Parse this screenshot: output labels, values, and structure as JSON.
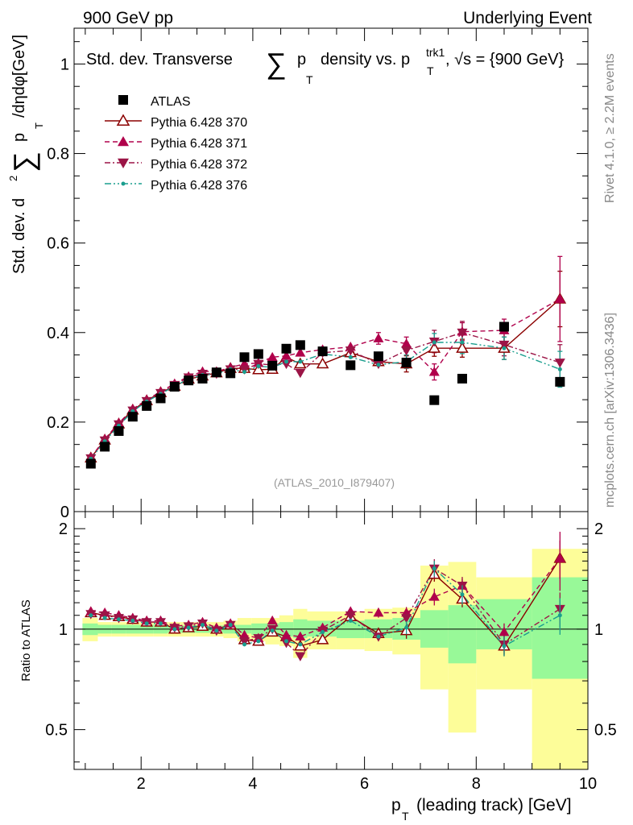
{
  "header": {
    "left": "900 GeV pp",
    "right": "Underlying Event",
    "side_top": "Rivet 4.1.0, ≥ 2.2M events",
    "side_bottom": "mcplots.cern.ch [arXiv:1306.3436]"
  },
  "colors": {
    "atlas": "#000000",
    "p370": "#8b0000",
    "p371": "#b0004b",
    "p372": "#9b1446",
    "p376": "#1a9e8e",
    "band_stat": "#98f998",
    "band_total": "#fdfd99"
  },
  "chart_data": [
    {
      "type": "scatter",
      "title": "Std. dev. Transverse ∑ p_T density vs. p_T^trk1, √s = {900 GeV}",
      "title_parts": {
        "a": "Std. dev. Transverse",
        "sum": "∑",
        "p": "p",
        "sub": "T",
        "b": "density vs. p",
        "sup": "trk1",
        "c": ", √s = {900 GeV}"
      },
      "ylabel": "Std. dev. d²∑ p_T /dηdφ [GeV]",
      "ylabel_parts": {
        "a": "Std. dev. d",
        "exp": "2",
        "sum": "∑",
        "p": "p",
        "sub": "T",
        "b": "/dηdφ[GeV]"
      },
      "xlim": [
        0.8,
        10
      ],
      "ylim": [
        0,
        1.08
      ],
      "yticks": [
        "0",
        "0.2",
        "0.4",
        "0.6",
        "0.8",
        "1"
      ],
      "yticks_values": [
        0,
        0.2,
        0.4,
        0.6,
        0.8,
        1.0
      ],
      "watermark": "(ATLAS_2010_I879407)",
      "x": [
        1.1,
        1.35,
        1.6,
        1.85,
        2.1,
        2.35,
        2.6,
        2.85,
        3.1,
        3.35,
        3.6,
        3.85,
        4.1,
        4.35,
        4.6,
        4.85,
        5.25,
        5.75,
        6.25,
        6.75,
        7.25,
        7.75,
        8.5,
        9.5
      ],
      "series": [
        {
          "name": "ATLAS",
          "key": "atlas",
          "marker": "square",
          "values": [
            0.107,
            0.145,
            0.18,
            0.212,
            0.236,
            0.253,
            0.279,
            0.293,
            0.297,
            0.311,
            0.309,
            0.345,
            0.352,
            0.326,
            0.364,
            0.372,
            0.358,
            0.327,
            0.347,
            0.333,
            0.249,
            0.297,
            0.413,
            0.29
          ]
        },
        {
          "name": "Pythia 6.428 370",
          "key": "p370",
          "marker": "triangle-up-open",
          "line": "solid",
          "values": [
            0.12,
            0.16,
            0.196,
            0.227,
            0.248,
            0.266,
            0.28,
            0.296,
            0.303,
            0.31,
            0.32,
            0.32,
            0.317,
            0.318,
            0.345,
            0.33,
            0.33,
            0.355,
            0.335,
            0.33,
            0.365,
            0.365,
            0.365,
            0.475
          ],
          "err": [
            0,
            0,
            0,
            0,
            0,
            0,
            0,
            0,
            0,
            0,
            0,
            0,
            0,
            0,
            0,
            0,
            0,
            0,
            0,
            0.018,
            0.018,
            0.02,
            0.025,
            0.062
          ]
        },
        {
          "name": "Pythia 6.428 371",
          "key": "p371",
          "marker": "triangle-up",
          "line": "dashed",
          "values": [
            0.121,
            0.162,
            0.198,
            0.229,
            0.25,
            0.268,
            0.286,
            0.302,
            0.313,
            0.313,
            0.322,
            0.33,
            0.332,
            0.345,
            0.348,
            0.355,
            0.362,
            0.368,
            0.387,
            0.375,
            0.312,
            0.402,
            0.405,
            0.475
          ],
          "err": [
            0,
            0,
            0,
            0,
            0,
            0,
            0,
            0,
            0,
            0,
            0,
            0,
            0,
            0,
            0,
            0,
            0,
            0,
            0.013,
            0.015,
            0.018,
            0.02,
            0.025,
            0.095
          ]
        },
        {
          "name": "Pythia 6.428 372",
          "key": "p372",
          "marker": "triangle-down",
          "line": "dashdot",
          "values": [
            0.119,
            0.159,
            0.195,
            0.226,
            0.247,
            0.265,
            0.283,
            0.3,
            0.308,
            0.308,
            0.318,
            0.318,
            0.33,
            0.328,
            0.33,
            0.31,
            0.355,
            0.36,
            0.33,
            0.36,
            0.38,
            0.4,
            0.373,
            0.333
          ],
          "err": [
            0,
            0,
            0,
            0,
            0,
            0,
            0,
            0,
            0,
            0,
            0,
            0,
            0,
            0,
            0,
            0,
            0,
            0,
            0,
            0.018,
            0.025,
            0.025,
            0.025,
            0.04
          ]
        },
        {
          "name": "Pythia 6.428 376",
          "key": "p376",
          "marker": "dot",
          "line": "dashdotdot",
          "values": [
            0.118,
            0.157,
            0.192,
            0.224,
            0.246,
            0.263,
            0.28,
            0.296,
            0.305,
            0.308,
            0.318,
            0.312,
            0.325,
            0.322,
            0.335,
            0.335,
            0.352,
            0.345,
            0.328,
            0.335,
            0.378,
            0.378,
            0.365,
            0.318
          ],
          "err": [
            0,
            0,
            0,
            0,
            0,
            0,
            0,
            0,
            0,
            0,
            0,
            0,
            0,
            0,
            0,
            0,
            0,
            0,
            0,
            0.015,
            0.02,
            0.025,
            0.025,
            0.04
          ]
        }
      ]
    },
    {
      "type": "scatter",
      "title": "",
      "ylabel": "Ratio to ATLAS",
      "xlabel": "p_T (leading track) [GeV]",
      "xlabel_parts": {
        "p": "p",
        "sub": "T",
        "rest": "(leading track) [GeV]"
      },
      "xlim": [
        0.8,
        10
      ],
      "ylim": [
        0.38,
        2.25
      ],
      "xticks": [
        "2",
        "4",
        "6",
        "8",
        "10"
      ],
      "xticks_values": [
        2,
        4,
        6,
        8,
        10
      ],
      "yticks": [
        "0.5",
        "1",
        "2"
      ],
      "yticks_values": [
        0.5,
        1,
        2
      ],
      "bins": [
        {
          "lo": 0.95,
          "hi": 1.225,
          "stat": [
            0.96,
            1.04
          ],
          "total": [
            0.92,
            1.08
          ]
        },
        {
          "lo": 1.225,
          "hi": 1.475,
          "stat": [
            0.97,
            1.03
          ],
          "total": [
            0.95,
            1.05
          ]
        },
        {
          "lo": 1.475,
          "hi": 1.725,
          "stat": [
            0.97,
            1.03
          ],
          "total": [
            0.95,
            1.05
          ]
        },
        {
          "lo": 1.725,
          "hi": 1.975,
          "stat": [
            0.97,
            1.03
          ],
          "total": [
            0.95,
            1.05
          ]
        },
        {
          "lo": 1.975,
          "hi": 2.225,
          "stat": [
            0.97,
            1.03
          ],
          "total": [
            0.95,
            1.05
          ]
        },
        {
          "lo": 2.225,
          "hi": 2.475,
          "stat": [
            0.97,
            1.03
          ],
          "total": [
            0.95,
            1.05
          ]
        },
        {
          "lo": 2.475,
          "hi": 2.725,
          "stat": [
            0.975,
            1.025
          ],
          "total": [
            0.95,
            1.05
          ]
        },
        {
          "lo": 2.725,
          "hi": 2.975,
          "stat": [
            0.975,
            1.025
          ],
          "total": [
            0.95,
            1.05
          ]
        },
        {
          "lo": 2.975,
          "hi": 3.225,
          "stat": [
            0.975,
            1.025
          ],
          "total": [
            0.95,
            1.05
          ]
        },
        {
          "lo": 3.225,
          "hi": 3.475,
          "stat": [
            0.975,
            1.025
          ],
          "total": [
            0.95,
            1.05
          ]
        },
        {
          "lo": 3.475,
          "hi": 3.725,
          "stat": [
            0.97,
            1.03
          ],
          "total": [
            0.94,
            1.06
          ]
        },
        {
          "lo": 3.725,
          "hi": 3.975,
          "stat": [
            0.97,
            1.03
          ],
          "total": [
            0.92,
            1.08
          ]
        },
        {
          "lo": 3.975,
          "hi": 4.225,
          "stat": [
            0.96,
            1.04
          ],
          "total": [
            0.92,
            1.08
          ]
        },
        {
          "lo": 4.225,
          "hi": 4.475,
          "stat": [
            0.96,
            1.04
          ],
          "total": [
            0.9,
            1.08
          ]
        },
        {
          "lo": 4.475,
          "hi": 4.725,
          "stat": [
            0.95,
            1.05
          ],
          "total": [
            0.89,
            1.1
          ]
        },
        {
          "lo": 4.725,
          "hi": 4.975,
          "stat": [
            0.94,
            1.07
          ],
          "total": [
            0.82,
            1.15
          ]
        },
        {
          "lo": 4.975,
          "hi": 5.5,
          "stat": [
            0.95,
            1.06
          ],
          "total": [
            0.87,
            1.13
          ]
        },
        {
          "lo": 5.5,
          "hi": 6.0,
          "stat": [
            0.94,
            1.06
          ],
          "total": [
            0.87,
            1.13
          ]
        },
        {
          "lo": 6.0,
          "hi": 6.5,
          "stat": [
            0.94,
            1.07
          ],
          "total": [
            0.86,
            1.15
          ]
        },
        {
          "lo": 6.5,
          "hi": 7.0,
          "stat": [
            0.93,
            1.08
          ],
          "total": [
            0.84,
            1.16
          ]
        },
        {
          "lo": 7.0,
          "hi": 7.5,
          "stat": [
            0.88,
            1.14
          ],
          "total": [
            0.66,
            1.55
          ]
        },
        {
          "lo": 7.5,
          "hi": 8.0,
          "stat": [
            0.79,
            1.18
          ],
          "total": [
            0.49,
            1.59
          ]
        },
        {
          "lo": 8.0,
          "hi": 9.0,
          "stat": [
            0.87,
            1.23
          ],
          "total": [
            0.66,
            1.43
          ]
        },
        {
          "lo": 9.0,
          "hi": 10.0,
          "stat": [
            0.71,
            1.43
          ],
          "total": [
            0.38,
            1.74
          ]
        }
      ],
      "series": [
        {
          "name": "Pythia 6.428 370",
          "key": "p370",
          "values": [
            1.12,
            1.1,
            1.09,
            1.07,
            1.05,
            1.05,
            1.0,
            1.01,
            1.02,
            1.0,
            1.03,
            0.93,
            0.92,
            0.98,
            0.95,
            0.89,
            0.93,
            1.09,
            0.97,
            0.99,
            1.46,
            1.23,
            0.89,
            1.63
          ]
        },
        {
          "name": "Pythia 6.428 371",
          "key": "p371",
          "values": [
            1.13,
            1.12,
            1.1,
            1.08,
            1.06,
            1.06,
            1.02,
            1.03,
            1.05,
            1.01,
            1.04,
            0.96,
            0.94,
            1.06,
            0.96,
            0.95,
            1.01,
            1.13,
            1.12,
            1.12,
            1.25,
            1.35,
            0.98,
            1.63
          ]
        },
        {
          "name": "Pythia 6.428 372",
          "key": "p372",
          "values": [
            1.11,
            1.1,
            1.08,
            1.07,
            1.05,
            1.05,
            1.01,
            1.02,
            1.04,
            0.99,
            1.03,
            0.92,
            0.94,
            1.0,
            0.91,
            0.83,
            0.99,
            1.1,
            0.95,
            1.08,
            1.52,
            1.35,
            0.9,
            1.15
          ]
        },
        {
          "name": "Pythia 6.428 376",
          "key": "p376",
          "values": [
            1.1,
            1.08,
            1.07,
            1.06,
            1.04,
            1.04,
            1.0,
            1.01,
            1.03,
            0.99,
            1.03,
            0.9,
            0.92,
            0.99,
            0.92,
            0.9,
            0.98,
            1.06,
            0.95,
            1.01,
            1.52,
            1.27,
            0.89,
            1.1
          ]
        }
      ]
    }
  ]
}
